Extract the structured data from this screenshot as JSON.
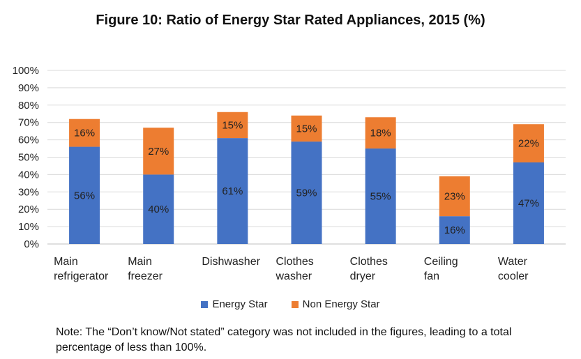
{
  "title": "Figure 10: Ratio of Energy Star Rated Appliances,  2015 (%)",
  "note": "Note: The “Don’t know/Not stated” category was not included in the figures, leading to a total percentage of less than 100%.",
  "colors": {
    "energy_star": "#4472C4",
    "non_energy_star": "#ED7D31",
    "grid": "#d9d9d9",
    "axis": "#bfbfbf"
  },
  "chart_data": {
    "type": "bar",
    "stacked": true,
    "title": "Figure 10: Ratio of Energy Star Rated Appliances,  2015 (%)",
    "categories": [
      [
        "Main",
        "refrigerator"
      ],
      [
        "Main",
        "freezer"
      ],
      [
        "Dishwasher"
      ],
      [
        "Clothes",
        "washer"
      ],
      [
        "Clothes",
        "dryer"
      ],
      [
        "Ceiling",
        "fan"
      ],
      [
        "Water",
        "cooler"
      ]
    ],
    "series": [
      {
        "name": "Energy Star",
        "values": [
          56,
          40,
          61,
          59,
          55,
          16,
          47
        ],
        "labels": [
          "56%",
          "40%",
          "61%",
          "59%",
          "55%",
          "16%",
          "47%"
        ]
      },
      {
        "name": "Non Energy Star",
        "values": [
          16,
          27,
          15,
          15,
          18,
          23,
          22
        ],
        "labels": [
          "16%",
          "27%",
          "15%",
          "15%",
          "18%",
          "23%",
          "22%"
        ]
      }
    ],
    "ylim": [
      0,
      100
    ],
    "yticks": [
      "0%",
      "10%",
      "20%",
      "30%",
      "40%",
      "50%",
      "60%",
      "70%",
      "80%",
      "90%",
      "100%"
    ],
    "grid": true,
    "legend_position": "bottom"
  }
}
